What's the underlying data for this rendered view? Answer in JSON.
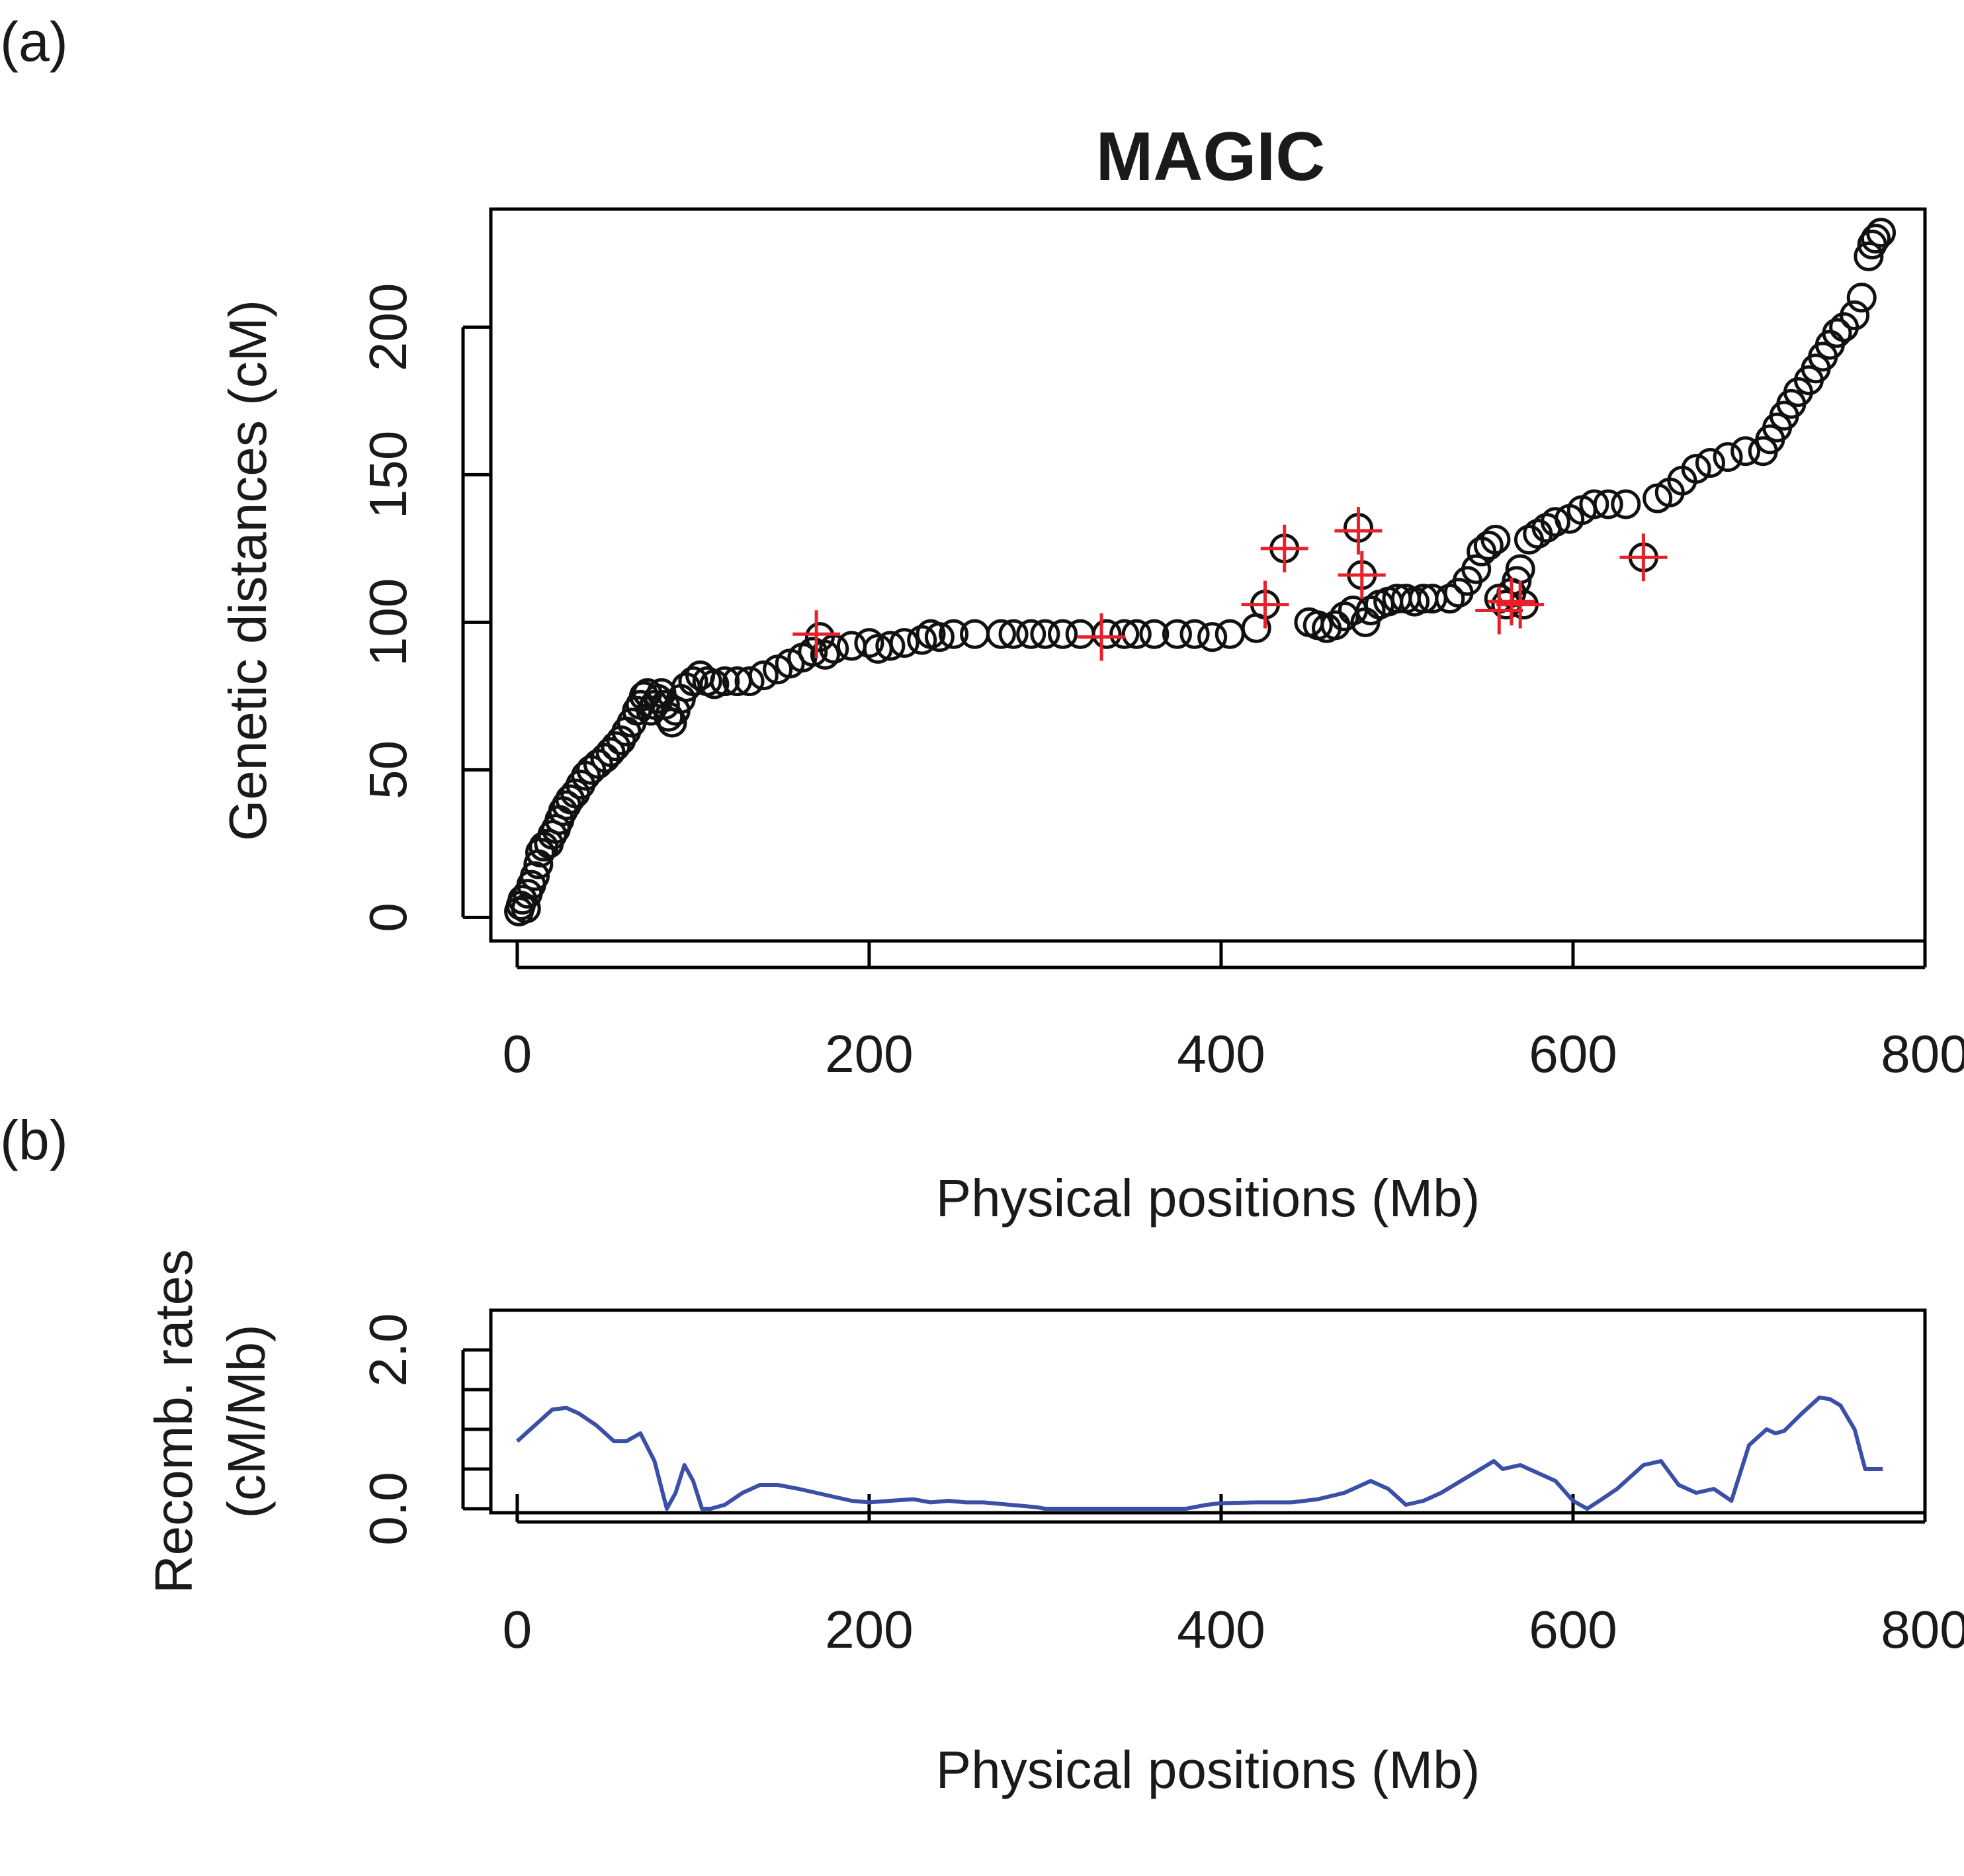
{
  "panels": {
    "a_label": "(a)",
    "b_label": "(b)"
  },
  "chart_data": [
    {
      "type": "scatter",
      "title": "MAGIC",
      "xlabel": "Physical positions (Mb)",
      "ylabel": "Genetic distances (cM)",
      "xlim": [
        -15,
        800
      ],
      "ylim": [
        -8,
        240
      ],
      "xticks": [
        "0",
        "200",
        "400",
        "600",
        "800"
      ],
      "yticks": [
        "0",
        "50",
        "100",
        "150",
        "200"
      ],
      "grid": false,
      "series": [
        {
          "marker": "circle",
          "color": "#111111",
          "points": [
            [
              1,
              2
            ],
            [
              2,
              4
            ],
            [
              3,
              6
            ],
            [
              5,
              3
            ],
            [
              6,
              8
            ],
            [
              8,
              11
            ],
            [
              10,
              14
            ],
            [
              12,
              18
            ],
            [
              13,
              22
            ],
            [
              15,
              24
            ],
            [
              18,
              25
            ],
            [
              20,
              28
            ],
            [
              22,
              30
            ],
            [
              24,
              33
            ],
            [
              26,
              36
            ],
            [
              28,
              38
            ],
            [
              30,
              40
            ],
            [
              33,
              42
            ],
            [
              36,
              45
            ],
            [
              39,
              48
            ],
            [
              42,
              50
            ],
            [
              46,
              52
            ],
            [
              50,
              54
            ],
            [
              53,
              56
            ],
            [
              56,
              58
            ],
            [
              59,
              60
            ],
            [
              62,
              63
            ],
            [
              65,
              66
            ],
            [
              68,
              70
            ],
            [
              70,
              72
            ],
            [
              72,
              75
            ],
            [
              74,
              76
            ],
            [
              76,
              70
            ],
            [
              78,
              72
            ],
            [
              80,
              74
            ],
            [
              82,
              76
            ],
            [
              84,
              72
            ],
            [
              86,
              68
            ],
            [
              88,
              66
            ],
            [
              90,
              70
            ],
            [
              93,
              74
            ],
            [
              96,
              78
            ],
            [
              100,
              80
            ],
            [
              104,
              82
            ],
            [
              108,
              80
            ],
            [
              112,
              79
            ],
            [
              118,
              80
            ],
            [
              125,
              80
            ],
            [
              132,
              80
            ],
            [
              140,
              82
            ],
            [
              148,
              84
            ],
            [
              155,
              86
            ],
            [
              162,
              88
            ],
            [
              168,
              90
            ],
            [
              172,
              95
            ],
            [
              175,
              89
            ],
            [
              180,
              91
            ],
            [
              190,
              92
            ],
            [
              200,
              93
            ],
            [
              205,
              91
            ],
            [
              212,
              92
            ],
            [
              220,
              93
            ],
            [
              230,
              94
            ],
            [
              235,
              96
            ],
            [
              240,
              95
            ],
            [
              248,
              96
            ],
            [
              260,
              96
            ],
            [
              275,
              96
            ],
            [
              282,
              96
            ],
            [
              292,
              96
            ],
            [
              300,
              96
            ],
            [
              310,
              96
            ],
            [
              320,
              96
            ],
            [
              335,
              96
            ],
            [
              345,
              96
            ],
            [
              352,
              96
            ],
            [
              362,
              96
            ],
            [
              375,
              96
            ],
            [
              385,
              96
            ],
            [
              395,
              95
            ],
            [
              405,
              96
            ],
            [
              420,
              98
            ],
            [
              425,
              106
            ],
            [
              436,
              125
            ],
            [
              450,
              100
            ],
            [
              455,
              99
            ],
            [
              460,
              98
            ],
            [
              465,
              99
            ],
            [
              470,
              102
            ],
            [
              475,
              104
            ],
            [
              478,
              132
            ],
            [
              480,
              116
            ],
            [
              482,
              100
            ],
            [
              485,
              104
            ],
            [
              490,
              106
            ],
            [
              495,
              107
            ],
            [
              500,
              108
            ],
            [
              505,
              108
            ],
            [
              510,
              107
            ],
            [
              515,
              108
            ],
            [
              520,
              108
            ],
            [
              530,
              108
            ],
            [
              535,
              110
            ],
            [
              540,
              114
            ],
            [
              545,
              118
            ],
            [
              548,
              124
            ],
            [
              552,
              126
            ],
            [
              556,
              128
            ],
            [
              558,
              108
            ],
            [
              562,
              106
            ],
            [
              565,
              110
            ],
            [
              568,
              114
            ],
            [
              570,
              118
            ],
            [
              572,
              106
            ],
            [
              575,
              128
            ],
            [
              580,
              130
            ],
            [
              585,
              132
            ],
            [
              590,
              134
            ],
            [
              598,
              135
            ],
            [
              605,
              138
            ],
            [
              612,
              140
            ],
            [
              620,
              140
            ],
            [
              630,
              140
            ],
            [
              640,
              122
            ],
            [
              648,
              142
            ],
            [
              655,
              144
            ],
            [
              662,
              148
            ],
            [
              670,
              152
            ],
            [
              678,
              154
            ],
            [
              688,
              156
            ],
            [
              698,
              158
            ],
            [
              708,
              158
            ],
            [
              712,
              162
            ],
            [
              716,
              166
            ],
            [
              720,
              170
            ],
            [
              724,
              174
            ],
            [
              728,
              178
            ],
            [
              734,
              182
            ],
            [
              738,
              186
            ],
            [
              742,
              190
            ],
            [
              746,
              194
            ],
            [
              750,
              198
            ],
            [
              754,
              200
            ],
            [
              760,
              204
            ],
            [
              764,
              210
            ],
            [
              768,
              224
            ],
            [
              770,
              228
            ],
            [
              772,
              230
            ],
            [
              775,
              232
            ]
          ]
        },
        {
          "marker": "plus",
          "color": "#e8202a",
          "points": [
            [
              170,
              96
            ],
            [
              332,
              95
            ],
            [
              425,
              106
            ],
            [
              436,
              125
            ],
            [
              478,
              131
            ],
            [
              480,
              116
            ],
            [
              558,
              104
            ],
            [
              565,
              107
            ],
            [
              570,
              106
            ],
            [
              640,
              122
            ]
          ]
        }
      ]
    },
    {
      "type": "line",
      "title": "",
      "xlabel": "Physical positions (Mb)",
      "ylabel": "Recomb. rates (cM/Mb)",
      "ylabel_lines": [
        "Recomb. rates",
        "(cM/Mb)"
      ],
      "xlim": [
        -15,
        800
      ],
      "ylim": [
        -0.05,
        2.5
      ],
      "xticks": [
        "0",
        "200",
        "400",
        "600",
        "800"
      ],
      "yticks": [
        "0.0",
        "2.0"
      ],
      "y_minor_ticks": [
        0.0,
        0.5,
        1.0,
        1.5,
        2.0
      ],
      "grid": false,
      "series": [
        {
          "color": "#3a4fa6",
          "x": [
            0,
            10,
            20,
            28,
            35,
            45,
            55,
            62,
            70,
            78,
            85,
            90,
            95,
            100,
            105,
            110,
            118,
            128,
            138,
            148,
            160,
            170,
            180,
            190,
            200,
            212,
            225,
            235,
            245,
            255,
            265,
            280,
            295,
            300,
            320,
            340,
            360,
            380,
            392,
            400,
            420,
            440,
            455,
            470,
            485,
            495,
            505,
            515,
            525,
            540,
            555,
            560,
            570,
            580,
            590,
            600,
            608,
            615,
            625,
            640,
            650,
            660,
            670,
            680,
            690,
            700,
            710,
            715,
            720,
            730,
            740,
            746,
            752,
            760,
            766,
            772,
            776
          ],
          "y": [
            0.85,
            1.05,
            1.25,
            1.27,
            1.2,
            1.05,
            0.85,
            0.85,
            0.95,
            0.6,
            0.0,
            0.2,
            0.55,
            0.35,
            0.0,
            0.0,
            0.05,
            0.2,
            0.3,
            0.3,
            0.25,
            0.2,
            0.15,
            0.1,
            0.08,
            0.1,
            0.12,
            0.08,
            0.1,
            0.08,
            0.08,
            0.05,
            0.02,
            0.0,
            0.0,
            0.0,
            0.0,
            0.0,
            0.05,
            0.07,
            0.08,
            0.08,
            0.12,
            0.2,
            0.35,
            0.25,
            0.05,
            0.1,
            0.2,
            0.4,
            0.6,
            0.5,
            0.55,
            0.45,
            0.35,
            0.1,
            0.0,
            0.1,
            0.25,
            0.55,
            0.6,
            0.3,
            0.2,
            0.25,
            0.1,
            0.8,
            1.0,
            0.95,
            0.98,
            1.2,
            1.4,
            1.38,
            1.3,
            1.0,
            0.5,
            0.5,
            0.5
          ]
        }
      ]
    }
  ]
}
